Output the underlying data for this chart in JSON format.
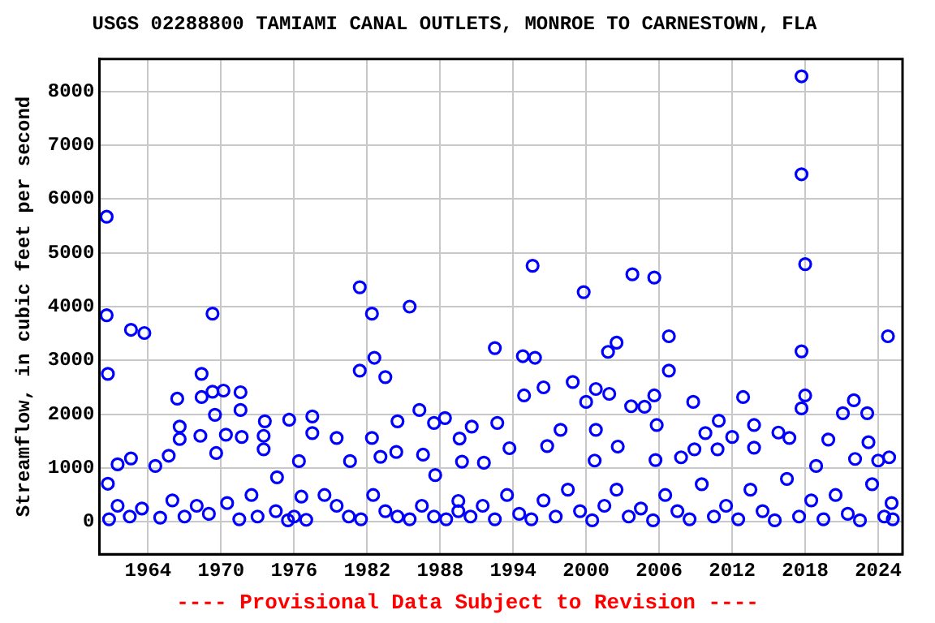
{
  "chart_data": {
    "type": "scatter",
    "title": "USGS 02288800 TAMIAMI CANAL OUTLETS, MONROE TO CARNESTOWN, FLA",
    "ylabel": "Streamflow, in cubic feet per second",
    "annotations": [
      "---- Provisional Data Subject to Revision ----"
    ],
    "x": [
      1960.6,
      1960.6,
      1960.7,
      1962.6,
      1963.7,
      1969.3,
      1966.4,
      1968.4,
      1968.4,
      1969.3,
      1970.2,
      1971.6,
      1971.6,
      1966.6,
      1969.5,
      1973.6,
      1975.6,
      1977.5,
      1981.4,
      1982.4,
      1982.6,
      1981.4,
      1983.5,
      1985.5,
      1986.3,
      1984.5,
      1987.5,
      1988.4,
      1960.7,
      1961.5,
      1962.6,
      1964.6,
      1965.7,
      1966.6,
      1968.3,
      1969.6,
      1970.4,
      1971.7,
      1973.5,
      1973.5,
      1974.6,
      1976.4,
      1976.6,
      1977.5,
      1979.5,
      1980.6,
      1982.4,
      1983.1,
      1984.4,
      1986.6,
      1987.6,
      1989.6,
      1989.5,
      1960.8,
      1961.5,
      1962.5,
      1963.5,
      1965,
      1966,
      1967,
      1968,
      1969,
      1970.5,
      1971.5,
      1972.5,
      1973,
      1974.5,
      1975.5,
      1976,
      1977,
      1978.5,
      1979.5,
      1980.5,
      1981.5,
      1982.5,
      1983.5,
      1984.5,
      1985.5,
      1986.5,
      1987.5,
      1988.5,
      1989.5,
      2017.7,
      2017.7,
      2018.0,
      1995.6,
      2003.8,
      2005.6,
      1999.8,
      1992.5,
      1994.8,
      1995.8,
      2001.8,
      2002.5,
      2006.8,
      2024.8,
      2017.7,
      2006.8,
      1996.5,
      1998.9,
      2000.8,
      2001.9,
      1994.9,
      2000.0,
      2005.6,
      2003.7,
      2004.8,
      2008.8,
      2012.9,
      2018.0,
      2017.7,
      2022.0,
      2021.1,
      2023.1,
      2010.9,
      2013.8,
      2019.9,
      1990.6,
      1992.7,
      1997.9,
      2000.8,
      2005.8,
      2009.8,
      2012.0,
      2015.8,
      2016.7,
      2023.2,
      1993.7,
      1996.8,
      2002.6,
      2008.9,
      2010.8,
      2013.8,
      2024.0,
      2024.9,
      2022.1,
      2018.9,
      2007.8,
      2005.7,
      2000.7,
      1991.6,
      1989.8,
      2025.1,
      2025.2,
      1990.5,
      1991.5,
      1992.5,
      1993.5,
      1994.5,
      1995.5,
      1996.5,
      1997.5,
      1998.5,
      1999.5,
      2000.5,
      2001.5,
      2002.5,
      2003.5,
      2004.5,
      2005.5,
      2006.5,
      2007.5,
      2008.5,
      2009.5,
      2010.5,
      2011.5,
      2012.5,
      2013.5,
      2014.5,
      2015.5,
      2016.5,
      2017.5,
      2018.5,
      2019.5,
      2020.5,
      2021.5,
      2022.5,
      2023.5,
      2024.5
    ],
    "series": [
      {
        "color": "#0000ff",
        "values": [
          5670,
          3840,
          2750,
          3570,
          3510,
          3870,
          2290,
          2750,
          2320,
          2420,
          2440,
          2410,
          2080,
          1770,
          1990,
          1870,
          1900,
          1960,
          4360,
          3870,
          3050,
          2810,
          2690,
          4000,
          2080,
          1870,
          1840,
          1930,
          710,
          1070,
          1180,
          1040,
          1230,
          1540,
          1600,
          1280,
          1620,
          1580,
          1600,
          1350,
          830,
          1130,
          470,
          1650,
          1560,
          1130,
          1560,
          1210,
          1300,
          1250,
          870,
          1550,
          390,
          50,
          300,
          100,
          250,
          80,
          400,
          100,
          300,
          150,
          350,
          50,
          500,
          100,
          200,
          30,
          100,
          40,
          500,
          300,
          100,
          50,
          500,
          200,
          100,
          50,
          300,
          100,
          50,
          200,
          8280,
          6460,
          4790,
          4760,
          4600,
          4540,
          4270,
          3230,
          3080,
          3050,
          3160,
          3330,
          3450,
          3450,
          3170,
          2810,
          2500,
          2600,
          2470,
          2380,
          2350,
          2230,
          2350,
          2150,
          2140,
          2230,
          2320,
          2350,
          2110,
          2260,
          2020,
          2020,
          1880,
          1800,
          1530,
          1770,
          1840,
          1710,
          1710,
          1800,
          1650,
          1580,
          1660,
          1560,
          1480,
          1370,
          1410,
          1400,
          1350,
          1350,
          1380,
          1140,
          1200,
          1170,
          1040,
          1200,
          1150,
          1140,
          1100,
          1120,
          350,
          50,
          100,
          300,
          50,
          500,
          150,
          50,
          400,
          100,
          600,
          200,
          30,
          300,
          600,
          100,
          250,
          30,
          500,
          200,
          50,
          700,
          100,
          300,
          50,
          600,
          200,
          30,
          800,
          100,
          400,
          50,
          500,
          150,
          30,
          700,
          100
        ]
      }
    ],
    "xlim": [
      1960,
      2026
    ],
    "xticks": [
      1964,
      1970,
      1976,
      1982,
      1988,
      1994,
      2000,
      2006,
      2012,
      2018,
      2024
    ],
    "ylim": [
      -600,
      8600
    ],
    "yticks": [
      0,
      1000,
      2000,
      3000,
      4000,
      5000,
      6000,
      7000,
      8000
    ],
    "grid": true,
    "marker": "circle",
    "legend": false
  }
}
